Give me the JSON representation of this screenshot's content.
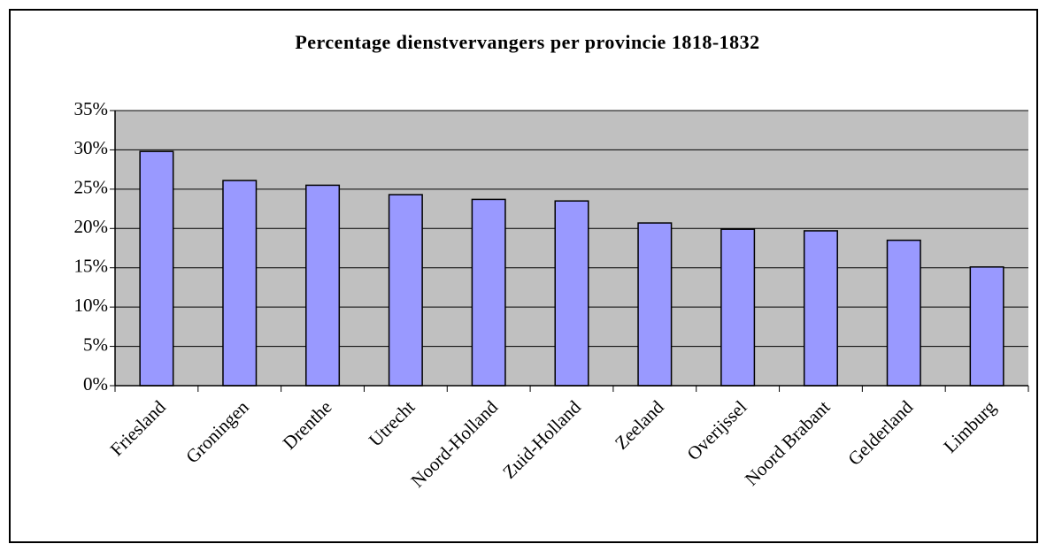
{
  "chart_data": {
    "type": "bar",
    "title": "Percentage dienstvervangers per provincie 1818-1832",
    "categories": [
      "Friesland",
      "Groningen",
      "Drenthe",
      "Utrecht",
      "Noord-Holland",
      "Zuid-Holland",
      "Zeeland",
      "Overijssel",
      "Noord Brabant",
      "Gelderland",
      "Limburg"
    ],
    "values": [
      29.8,
      26.1,
      25.5,
      24.3,
      23.7,
      23.5,
      20.7,
      19.9,
      19.7,
      18.5,
      15.1
    ],
    "color": "#9999ff",
    "ylim": [
      0,
      35
    ],
    "yticks": [
      {
        "value": 0,
        "label": "0%"
      },
      {
        "value": 5,
        "label": "5%"
      },
      {
        "value": 10,
        "label": "10%"
      },
      {
        "value": 15,
        "label": "15%"
      },
      {
        "value": 20,
        "label": "20%"
      },
      {
        "value": 25,
        "label": "25%"
      },
      {
        "value": 30,
        "label": "30%"
      },
      {
        "value": 35,
        "label": "35%"
      }
    ],
    "grid": true
  }
}
